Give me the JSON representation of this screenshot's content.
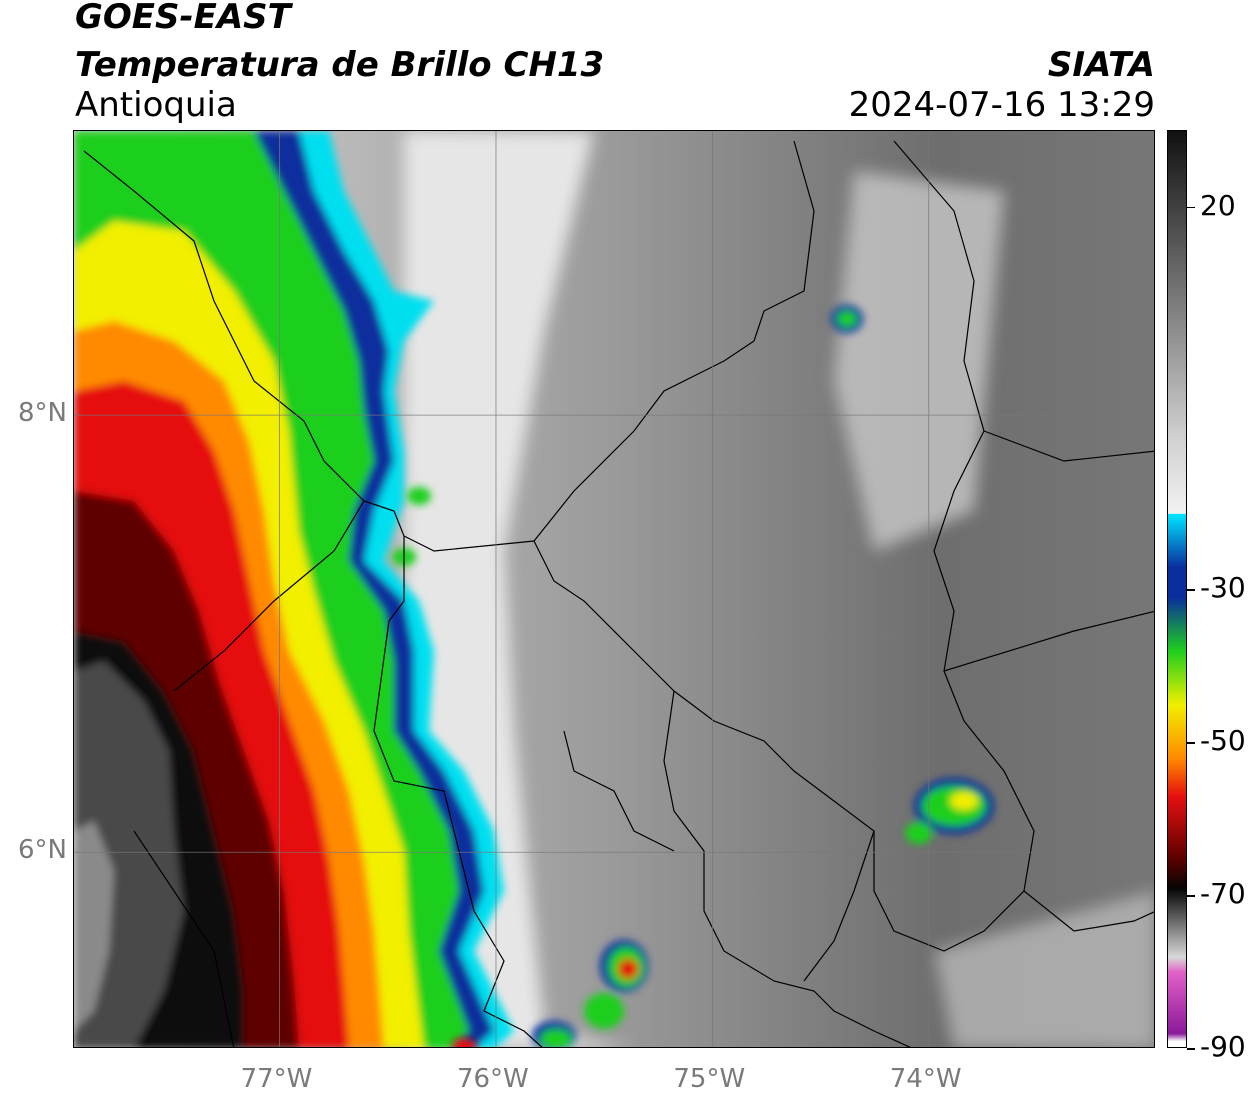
{
  "header": {
    "line1": "GOES-EAST",
    "line2": "Temperatura de Brillo CH13",
    "line3": "Antioquia",
    "source": "SIATA",
    "datetime": "2024-07-16 13:29"
  },
  "map": {
    "lon_range": [
      -77.95,
      -72.95
    ],
    "lat_range": [
      5.1,
      9.3
    ],
    "lat_ticks": [
      {
        "value": 8,
        "label": "8°N"
      },
      {
        "value": 6,
        "label": "6°N"
      }
    ],
    "lon_ticks": [
      {
        "value": -77,
        "label": "77°W"
      },
      {
        "value": -76,
        "label": "76°W"
      },
      {
        "value": -75,
        "label": "75°W"
      },
      {
        "value": -74,
        "label": "74°W"
      }
    ],
    "grid": true
  },
  "colorbar": {
    "vmin": -90,
    "vmax": 30,
    "ticks": [
      {
        "value": 20,
        "label": "20"
      },
      {
        "value": -30,
        "label": "-30"
      },
      {
        "value": -50,
        "label": "-50"
      },
      {
        "value": -70,
        "label": "-70"
      },
      {
        "value": -90,
        "label": "-90"
      }
    ],
    "colors": {
      "warm_black": "#111111",
      "white": "#f2f2f2",
      "cyan": "#00e5ff",
      "blue": "#0a2f9c",
      "green": "#1fcf1f",
      "yellow": "#f2ef00",
      "orange": "#ff8a00",
      "red": "#e51010",
      "dark_red": "#5e0000",
      "black": "#050505",
      "pink": "#e060c8",
      "purple": "#8a1a9a"
    }
  }
}
